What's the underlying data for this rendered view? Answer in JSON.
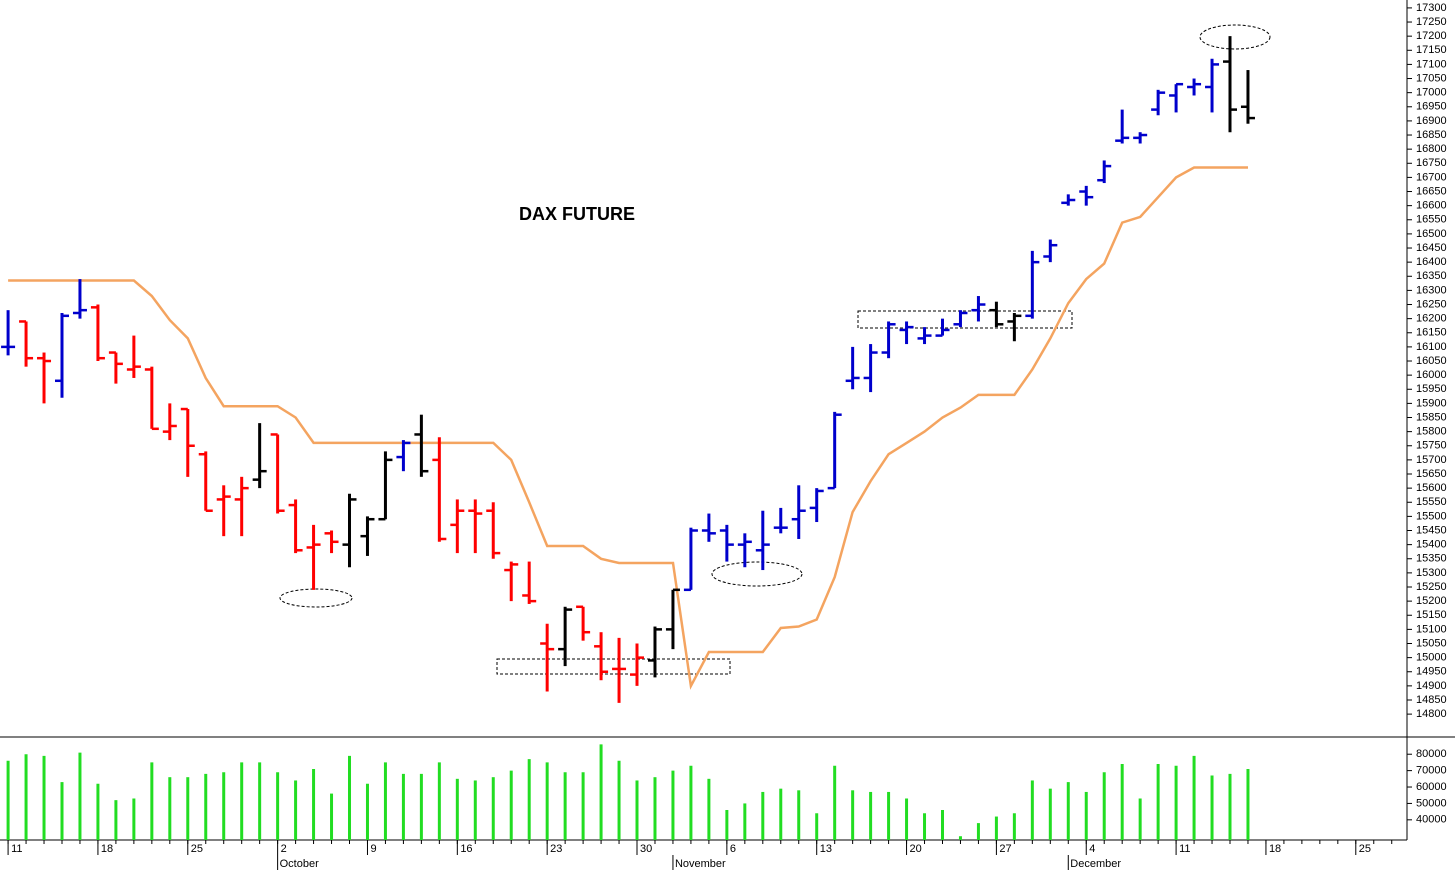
{
  "chart_data": [
    {
      "type": "ohlc",
      "title": "DAX FUTURE",
      "open": [
        16100,
        16190,
        16060,
        15980,
        16220,
        16240,
        16080,
        16020,
        16020,
        15800,
        15880,
        15720,
        15560,
        15560,
        15630,
        15790,
        15540,
        15390,
        15440,
        15400,
        15430,
        15490,
        15710,
        15790,
        15700,
        15470,
        15520,
        15520,
        15310,
        15220,
        15050,
        15030,
        15180,
        15040,
        14960,
        14940,
        14990,
        15100,
        15240,
        15450,
        15450,
        15400,
        15380,
        15460,
        15490,
        15530,
        15600,
        15980,
        15990,
        16080,
        16160,
        16130,
        16140,
        16180,
        16230,
        16230,
        16190,
        16210,
        16420,
        16610,
        16650,
        16690,
        16830,
        16840,
        16940,
        16990,
        17020,
        17020,
        17110,
        16950
      ],
      "high": [
        16230,
        16190,
        16080,
        16220,
        16340,
        16250,
        16080,
        16140,
        16030,
        15900,
        15880,
        15730,
        15610,
        15640,
        15830,
        15790,
        15560,
        15470,
        15450,
        15580,
        15500,
        15730,
        15770,
        15860,
        15780,
        15560,
        15560,
        15550,
        15340,
        15340,
        15120,
        15180,
        15180,
        15090,
        15070,
        15050,
        15110,
        15240,
        15460,
        15510,
        15470,
        15440,
        15520,
        15530,
        15610,
        15600,
        15870,
        16100,
        16110,
        16190,
        16190,
        16170,
        16200,
        16230,
        16280,
        16260,
        16220,
        16440,
        16480,
        16640,
        16670,
        16760,
        16940,
        16860,
        17010,
        17030,
        17050,
        17120,
        17200,
        17080
      ],
      "low": [
        16070,
        16030,
        15900,
        15920,
        16200,
        16050,
        15970,
        15990,
        15810,
        15770,
        15640,
        15520,
        15430,
        15430,
        15600,
        15510,
        15370,
        15240,
        15370,
        15320,
        15360,
        15490,
        15660,
        15640,
        15410,
        15370,
        15370,
        15350,
        15200,
        15190,
        14880,
        14970,
        15060,
        14920,
        14840,
        14900,
        14930,
        15030,
        15240,
        15410,
        15340,
        15320,
        15310,
        15440,
        15420,
        15480,
        15600,
        15950,
        15940,
        16060,
        16110,
        16110,
        16140,
        16170,
        16190,
        16170,
        16120,
        16200,
        16400,
        16600,
        16600,
        16680,
        16820,
        16820,
        16920,
        16930,
        16990,
        16930,
        16860,
        16890
      ],
      "close": [
        16100,
        16060,
        16050,
        16210,
        16230,
        16060,
        16040,
        16030,
        15810,
        15820,
        15750,
        15520,
        15570,
        15600,
        15660,
        15520,
        15380,
        15400,
        15410,
        15560,
        15490,
        15700,
        15760,
        15660,
        15420,
        15520,
        15510,
        15370,
        15330,
        15200,
        15030,
        15170,
        15090,
        14950,
        14960,
        15000,
        15100,
        15240,
        15450,
        15440,
        15400,
        15410,
        15400,
        15460,
        15520,
        15590,
        15860,
        15990,
        16080,
        16180,
        16170,
        16140,
        16160,
        16220,
        16250,
        16180,
        16210,
        16400,
        16460,
        16620,
        16630,
        16740,
        16840,
        16850,
        17000,
        17030,
        17030,
        17100,
        16940,
        16910
      ],
      "colors": [
        "#0000cc",
        "#ff0000",
        "#ff0000",
        "#0000cc",
        "#0000cc",
        "#ff0000",
        "#ff0000",
        "#ff0000",
        "#ff0000",
        "#ff0000",
        "#ff0000",
        "#ff0000",
        "#ff0000",
        "#ff0000",
        "#000000",
        "#ff0000",
        "#ff0000",
        "#ff0000",
        "#ff0000",
        "#000000",
        "#000000",
        "#000000",
        "#0000cc",
        "#000000",
        "#ff0000",
        "#ff0000",
        "#ff0000",
        "#ff0000",
        "#ff0000",
        "#ff0000",
        "#ff0000",
        "#000000",
        "#ff0000",
        "#ff0000",
        "#ff0000",
        "#ff0000",
        "#000000",
        "#000000",
        "#0000cc",
        "#0000cc",
        "#0000cc",
        "#0000cc",
        "#0000cc",
        "#0000cc",
        "#0000cc",
        "#0000cc",
        "#0000cc",
        "#0000cc",
        "#0000cc",
        "#0000cc",
        "#0000cc",
        "#0000cc",
        "#0000cc",
        "#0000cc",
        "#0000cc",
        "#000000",
        "#000000",
        "#0000cc",
        "#0000cc",
        "#0000cc",
        "#0000cc",
        "#0000cc",
        "#0000cc",
        "#0000cc",
        "#0000cc",
        "#0000cc",
        "#0000cc",
        "#0000cc",
        "#000000",
        "#000000"
      ],
      "line_color": "#f4a460",
      "line_values": [
        16335,
        16335,
        16335,
        16335,
        16335,
        16335,
        16335,
        16335,
        16280,
        16195,
        16130,
        15990,
        15890,
        15890,
        15890,
        15890,
        15850,
        15760,
        15760,
        15760,
        15760,
        15760,
        15760,
        15760,
        15760,
        15760,
        15760,
        15760,
        15700,
        15550,
        15395,
        15395,
        15395,
        15350,
        15335,
        15335,
        15335,
        15335,
        14900,
        15020,
        15020,
        15020,
        15020,
        15105,
        15110,
        15135,
        15285,
        15515,
        15625,
        15720,
        15760,
        15800,
        15850,
        15885,
        15930,
        15930,
        15930,
        16020,
        16130,
        16255,
        16340,
        16395,
        16540,
        16560,
        16630,
        16700,
        16735,
        16735,
        16735,
        16735
      ],
      "ylim": [
        14719,
        17328
      ],
      "yticks": [
        14800,
        14850,
        14900,
        14950,
        15000,
        15050,
        15100,
        15150,
        15200,
        15250,
        15300,
        15350,
        15400,
        15450,
        15500,
        15550,
        15600,
        15650,
        15700,
        15750,
        15800,
        15850,
        15900,
        15950,
        16000,
        16050,
        16100,
        16150,
        16200,
        16250,
        16300,
        16350,
        16400,
        16450,
        16500,
        16550,
        16600,
        16650,
        16700,
        16750,
        16800,
        16850,
        16900,
        16950,
        17000,
        17050,
        17100,
        17150,
        17200,
        17250,
        17300
      ]
    },
    {
      "type": "volume",
      "color": "#22dd22",
      "values": [
        76000,
        80000,
        79000,
        63000,
        81000,
        62000,
        52000,
        53000,
        75000,
        66000,
        66000,
        68000,
        69000,
        75000,
        75000,
        69000,
        64000,
        71000,
        56000,
        79000,
        62000,
        75000,
        68000,
        68000,
        75000,
        65000,
        64000,
        66000,
        70000,
        77000,
        75000,
        69000,
        69000,
        86000,
        76000,
        64000,
        66000,
        70000,
        73000,
        65000,
        46000,
        50000,
        57000,
        59000,
        58000,
        44000,
        73000,
        58000,
        57000,
        57000,
        53000,
        44000,
        46000,
        30000,
        38000,
        42000,
        44000,
        64000,
        59000,
        63000,
        57000,
        69000,
        74000,
        53000,
        74000,
        73000,
        79000,
        67000,
        68000,
        71000
      ],
      "ylim": [
        27700,
        90500
      ],
      "yticks": [
        40000,
        50000,
        60000,
        70000,
        80000
      ]
    }
  ],
  "x_axis": {
    "xlim": [
      -0.45,
      77.85
    ],
    "xticks": [
      {
        "value": 0,
        "label": "11"
      },
      {
        "value": 5,
        "label": "18"
      },
      {
        "value": 10,
        "label": "25"
      },
      {
        "value": 15,
        "label": "2"
      },
      {
        "value": 20,
        "label": "9"
      },
      {
        "value": 25,
        "label": "16"
      },
      {
        "value": 30,
        "label": "23"
      },
      {
        "value": 35,
        "label": "30"
      },
      {
        "value": 40,
        "label": "6"
      },
      {
        "value": 45,
        "label": "13"
      },
      {
        "value": 50,
        "label": "20"
      },
      {
        "value": 55,
        "label": "27"
      },
      {
        "value": 60,
        "label": "4"
      },
      {
        "value": 65,
        "label": "11"
      },
      {
        "value": 70,
        "label": "18"
      },
      {
        "value": 75,
        "label": "25"
      }
    ],
    "month_ticks": [
      {
        "value": 15,
        "label": "October"
      },
      {
        "value": 37,
        "label": "November"
      },
      {
        "value": 59,
        "label": "December"
      }
    ]
  }
}
